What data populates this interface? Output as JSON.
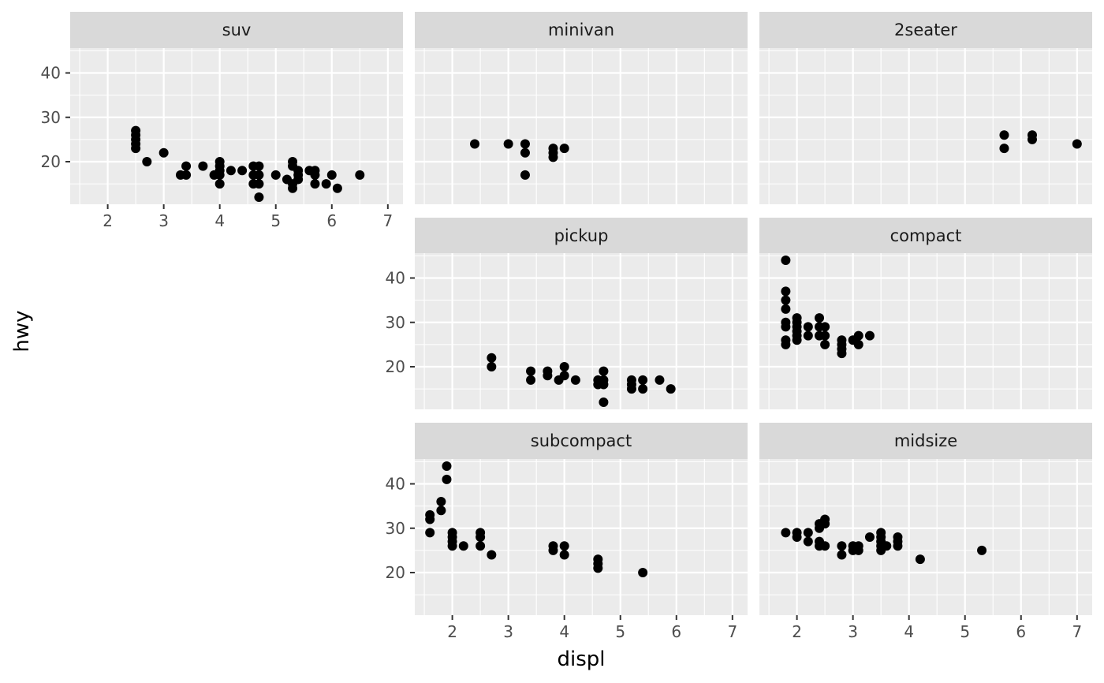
{
  "chart_data": {
    "type": "scatter",
    "xlabel": "displ",
    "ylabel": "hwy",
    "xlim": [
      1.33,
      7.27
    ],
    "ylim": [
      10.4,
      45.6
    ],
    "x_ticks": [
      2,
      3,
      4,
      5,
      6,
      7
    ],
    "y_ticks": [
      20,
      30,
      40
    ],
    "point_color": "#000000",
    "panel_background": "#ebebeb",
    "strip_background": "#d9d9d9",
    "grid": true,
    "panels": [
      {
        "label": "suv",
        "points": [
          [
            2.5,
            27
          ],
          [
            2.5,
            26
          ],
          [
            2.5,
            25
          ],
          [
            2.5,
            24
          ],
          [
            2.5,
            23
          ],
          [
            2.7,
            20
          ],
          [
            3.0,
            22
          ],
          [
            3.3,
            17
          ],
          [
            3.4,
            17
          ],
          [
            3.4,
            19
          ],
          [
            3.7,
            19
          ],
          [
            3.9,
            17
          ],
          [
            4.0,
            20
          ],
          [
            4.0,
            19
          ],
          [
            4.0,
            18
          ],
          [
            4.0,
            17
          ],
          [
            4.0,
            15
          ],
          [
            4.2,
            18
          ],
          [
            4.4,
            18
          ],
          [
            4.6,
            19
          ],
          [
            4.6,
            17
          ],
          [
            4.6,
            15
          ],
          [
            4.7,
            19
          ],
          [
            4.7,
            17
          ],
          [
            4.7,
            15
          ],
          [
            4.7,
            12
          ],
          [
            5.0,
            17
          ],
          [
            5.2,
            16
          ],
          [
            5.3,
            20
          ],
          [
            5.3,
            19
          ],
          [
            5.3,
            15
          ],
          [
            5.3,
            14
          ],
          [
            5.4,
            18
          ],
          [
            5.4,
            17
          ],
          [
            5.4,
            16
          ],
          [
            5.6,
            18
          ],
          [
            5.7,
            18
          ],
          [
            5.7,
            17
          ],
          [
            5.7,
            15
          ],
          [
            5.9,
            15
          ],
          [
            6.0,
            17
          ],
          [
            6.1,
            14
          ],
          [
            6.5,
            17
          ]
        ]
      },
      {
        "label": "minivan",
        "points": [
          [
            2.4,
            24
          ],
          [
            3.0,
            24
          ],
          [
            3.3,
            24
          ],
          [
            3.3,
            22
          ],
          [
            3.3,
            17
          ],
          [
            3.8,
            23
          ],
          [
            3.8,
            22
          ],
          [
            3.8,
            21
          ],
          [
            4.0,
            23
          ]
        ]
      },
      {
        "label": "2seater",
        "points": [
          [
            5.7,
            26
          ],
          [
            5.7,
            23
          ],
          [
            6.2,
            26
          ],
          [
            6.2,
            25
          ],
          [
            7.0,
            24
          ]
        ]
      },
      {
        "label": "pickup",
        "points": [
          [
            2.7,
            22
          ],
          [
            2.7,
            20
          ],
          [
            3.4,
            19
          ],
          [
            3.4,
            17
          ],
          [
            3.7,
            19
          ],
          [
            3.7,
            18
          ],
          [
            3.9,
            17
          ],
          [
            4.0,
            20
          ],
          [
            4.0,
            18
          ],
          [
            4.2,
            17
          ],
          [
            4.6,
            17
          ],
          [
            4.6,
            16
          ],
          [
            4.7,
            19
          ],
          [
            4.7,
            17
          ],
          [
            4.7,
            16
          ],
          [
            4.7,
            12
          ],
          [
            5.2,
            17
          ],
          [
            5.2,
            16
          ],
          [
            5.2,
            15
          ],
          [
            5.4,
            17
          ],
          [
            5.4,
            15
          ],
          [
            5.7,
            17
          ],
          [
            5.9,
            15
          ]
        ]
      },
      {
        "label": "compact",
        "points": [
          [
            1.8,
            44
          ],
          [
            1.8,
            37
          ],
          [
            1.8,
            35
          ],
          [
            1.8,
            33
          ],
          [
            1.8,
            30
          ],
          [
            1.8,
            29
          ],
          [
            1.8,
            26
          ],
          [
            1.8,
            25
          ],
          [
            2.0,
            31
          ],
          [
            2.0,
            30
          ],
          [
            2.0,
            29
          ],
          [
            2.0,
            28
          ],
          [
            2.0,
            27
          ],
          [
            2.0,
            26
          ],
          [
            2.2,
            29
          ],
          [
            2.2,
            27
          ],
          [
            2.4,
            31
          ],
          [
            2.4,
            29
          ],
          [
            2.4,
            27
          ],
          [
            2.5,
            29
          ],
          [
            2.5,
            27
          ],
          [
            2.5,
            25
          ],
          [
            2.8,
            26
          ],
          [
            2.8,
            25
          ],
          [
            2.8,
            24
          ],
          [
            2.8,
            23
          ],
          [
            3.0,
            26
          ],
          [
            3.1,
            27
          ],
          [
            3.1,
            25
          ],
          [
            3.3,
            27
          ]
        ]
      },
      {
        "label": "subcompact",
        "points": [
          [
            1.6,
            33
          ],
          [
            1.6,
            32
          ],
          [
            1.6,
            29
          ],
          [
            1.8,
            36
          ],
          [
            1.8,
            34
          ],
          [
            1.9,
            44
          ],
          [
            1.9,
            41
          ],
          [
            2.0,
            29
          ],
          [
            2.0,
            28
          ],
          [
            2.0,
            27
          ],
          [
            2.0,
            26
          ],
          [
            2.2,
            26
          ],
          [
            2.5,
            29
          ],
          [
            2.5,
            28
          ],
          [
            2.5,
            26
          ],
          [
            2.7,
            24
          ],
          [
            3.8,
            26
          ],
          [
            3.8,
            25
          ],
          [
            4.0,
            26
          ],
          [
            4.0,
            24
          ],
          [
            4.6,
            23
          ],
          [
            4.6,
            22
          ],
          [
            4.6,
            21
          ],
          [
            5.4,
            20
          ]
        ]
      },
      {
        "label": "midsize",
        "points": [
          [
            1.8,
            29
          ],
          [
            2.0,
            29
          ],
          [
            2.0,
            28
          ],
          [
            2.2,
            29
          ],
          [
            2.2,
            27
          ],
          [
            2.4,
            31
          ],
          [
            2.4,
            30
          ],
          [
            2.4,
            27
          ],
          [
            2.4,
            26
          ],
          [
            2.5,
            32
          ],
          [
            2.5,
            31
          ],
          [
            2.5,
            26
          ],
          [
            2.8,
            26
          ],
          [
            2.8,
            24
          ],
          [
            3.0,
            26
          ],
          [
            3.0,
            25
          ],
          [
            3.1,
            26
          ],
          [
            3.1,
            25
          ],
          [
            3.3,
            28
          ],
          [
            3.5,
            29
          ],
          [
            3.5,
            28
          ],
          [
            3.5,
            27
          ],
          [
            3.5,
            26
          ],
          [
            3.5,
            25
          ],
          [
            3.6,
            26
          ],
          [
            3.8,
            28
          ],
          [
            3.8,
            27
          ],
          [
            3.8,
            26
          ],
          [
            4.2,
            23
          ],
          [
            5.3,
            25
          ]
        ]
      }
    ]
  }
}
